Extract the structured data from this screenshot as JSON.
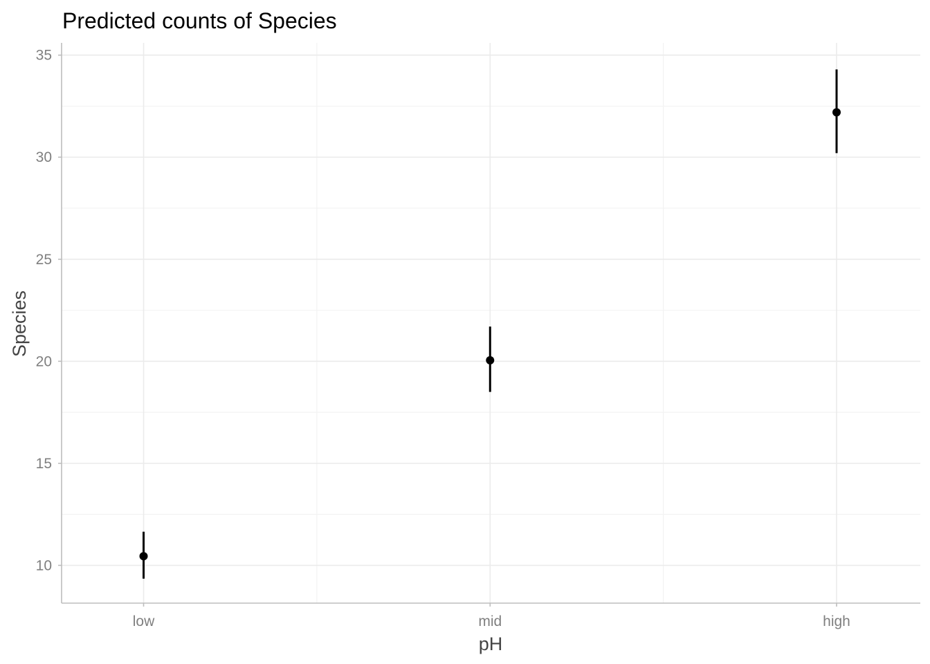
{
  "chart_data": {
    "type": "pointrange",
    "title": "Predicted counts of Species",
    "xlabel": "pH",
    "ylabel": "Species",
    "categories": [
      "low",
      "mid",
      "high"
    ],
    "values": [
      10.45,
      20.05,
      32.2
    ],
    "lower": [
      9.35,
      18.5,
      30.2
    ],
    "upper": [
      11.65,
      21.7,
      34.3
    ],
    "ylim": [
      8.15,
      35.6
    ],
    "yticks": [
      10,
      15,
      20,
      25,
      30,
      35
    ],
    "grid": true,
    "legend": "none",
    "colors": {
      "point": "#000000",
      "grid_major": "#ebebeb",
      "grid_minor": "#f3f3f3",
      "axis": "#bdbdbd",
      "tick_text": "#7f7f7f",
      "axis_title": "#444444"
    }
  }
}
